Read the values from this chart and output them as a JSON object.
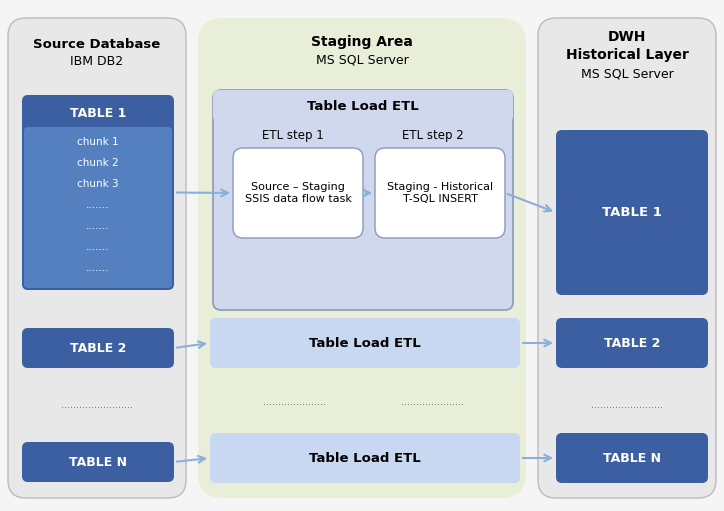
{
  "bg_color": "#f5f5f5",
  "left_panel_color": "#e8e8e8",
  "mid_panel_color": "#e8eed8",
  "right_panel_color": "#e8e8e8",
  "blue_dark": "#3b5fa0",
  "blue_light_box": "#c8d8f0",
  "etl_outer_bg": "#d0d8ee",
  "etl_inner_bg": "#ffffff",
  "arrow_color": "#8ab0d8",
  "title_left_line1": "Source Database",
  "title_left_line2": "IBM DB2",
  "title_mid_line1": "Staging Area",
  "title_mid_line2": "MS SQL Server",
  "title_right_line1": "DWH",
  "title_right_line2": "Historical Layer",
  "title_right_line3": "MS SQL Server",
  "table1_label": "TABLE 1",
  "table1_chunks": [
    "chunk 1",
    "chunk 2",
    "chunk 3",
    ".......",
    ".......",
    ".......",
    "......."
  ],
  "etl_header": "Table Load ETL",
  "etl_step1_label": "ETL step 1",
  "etl_step2_label": "ETL step 2",
  "etl_step1_text": "Source – Staging\nSSIS data flow task",
  "etl_step2_text": "Staging - Historical\nT-SQL INSERT",
  "table_load2_text": "Table Load ETL",
  "table_loadn_text": "Table Load ETL",
  "dots_left": "........................",
  "dots_mid1": ".....................",
  "dots_mid2": ".....................",
  "dots_right": "........................",
  "figsize": [
    7.24,
    5.11
  ],
  "dpi": 100
}
